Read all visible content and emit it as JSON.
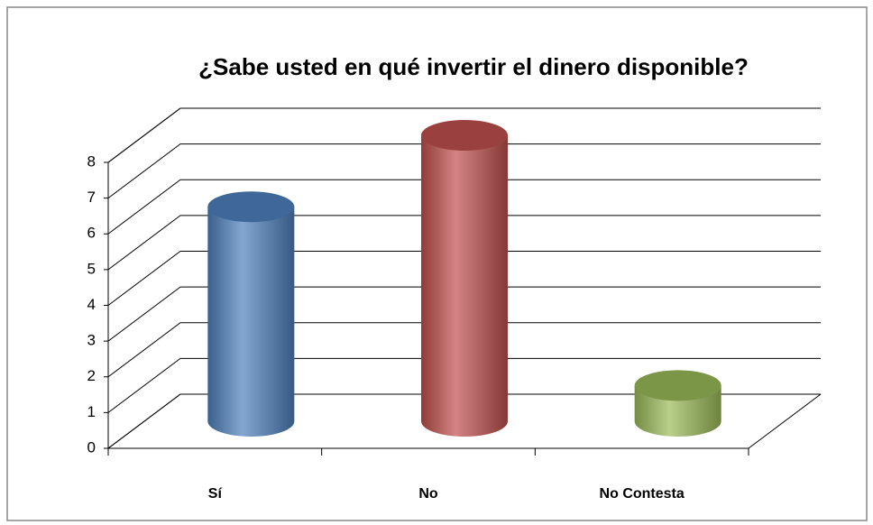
{
  "chart_data": {
    "type": "bar3d",
    "title": "¿Sabe usted en qué invertir el dinero disponible?",
    "categories": [
      "Sí",
      "No",
      "No Contesta"
    ],
    "values": [
      6,
      8,
      1
    ],
    "colors": [
      "#4f81bd",
      "#c0504d",
      "#9bbb59"
    ],
    "ylim": [
      0,
      8
    ],
    "yticks": [
      0,
      1,
      2,
      3,
      4,
      5,
      6,
      7,
      8
    ],
    "grid": true
  }
}
